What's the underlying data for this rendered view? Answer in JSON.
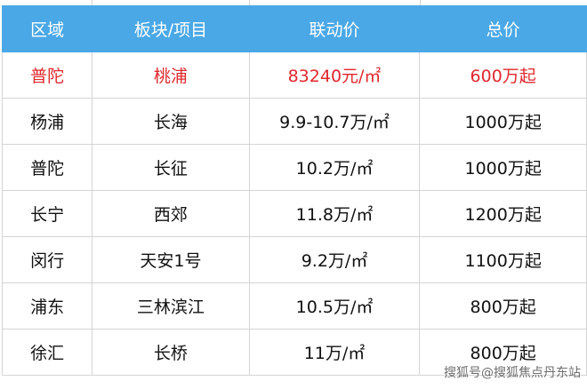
{
  "headers": [
    "区域",
    "板块/项目",
    "联动价",
    "总价"
  ],
  "rows": [
    [
      "普陀",
      "桃浦",
      "83240元/㎡",
      "600万起"
    ],
    [
      "杨浦",
      "长海",
      "9.9-10.7万/㎡",
      "1000万起"
    ],
    [
      "普陀",
      "长征",
      "10.2万/㎡",
      "1000万起"
    ],
    [
      "长宁",
      "西郊",
      "11.8万/㎡",
      "1200万起"
    ],
    [
      "闵行",
      "天安1号",
      "9.2万/㎡",
      "1100万起"
    ],
    [
      "浦东",
      "三林滨江",
      "10.5万/㎡",
      "800万起"
    ],
    [
      "徐汇",
      "长桥",
      "11万/㎡",
      "800万起"
    ]
  ],
  "highlight_color": "#e0282e",
  "header_color": "#4aa8e6",
  "watermark": "搜狐号@搜狐焦点丹东站"
}
